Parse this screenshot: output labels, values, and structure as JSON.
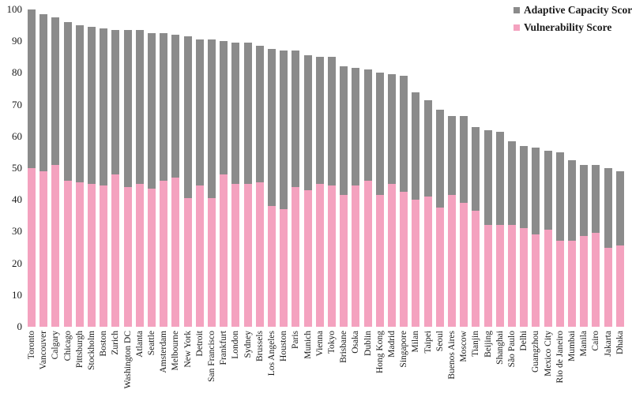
{
  "chart_data": {
    "type": "bar",
    "stacked": true,
    "title": "",
    "xlabel": "",
    "ylabel": "",
    "ylim": [
      0,
      100
    ],
    "yticks": [
      0,
      10,
      20,
      30,
      40,
      50,
      60,
      70,
      80,
      90,
      100
    ],
    "grid": false,
    "legend_position": "top-right",
    "categories": [
      "Toronto",
      "Vancouver",
      "Calgary",
      "Chicago",
      "Pittsburgh",
      "Stockholm",
      "Boston",
      "Zurich",
      "Washington DC",
      "Atlanta",
      "Seattle",
      "Amsterdam",
      "Melbourne",
      "New York",
      "Detroit",
      "San Francisco",
      "Frankfurt",
      "London",
      "Sydney",
      "Brussels",
      "Los Angeles",
      "Houston",
      "Paris",
      "Munich",
      "Vienna",
      "Tokyo",
      "Brisbane",
      "Osaka",
      "Dublin",
      "Hong Kong",
      "Madrid",
      "Singapore",
      "Milan",
      "Taipei",
      "Seoul",
      "Buenos Aires",
      "Moscow",
      "Tianjin",
      "Beijing",
      "Shanghai",
      "São Paulo",
      "Delhi",
      "Guangzhou",
      "Mexico City",
      "Rio de Janeiro",
      "Mumbai",
      "Manila",
      "Cairo",
      "Jakarta",
      "Dhaka"
    ],
    "series": [
      {
        "name": "Adaptive Capacity Score",
        "color": "#8B8B8B",
        "position": "top",
        "values": [
          50,
          49.5,
          46.5,
          50,
          49.5,
          49.5,
          49.5,
          45.5,
          49.5,
          48.5,
          49,
          46.5,
          45,
          51,
          46,
          50,
          42,
          44.5,
          44.5,
          43,
          49.5,
          50,
          43,
          42.5,
          40,
          40.5,
          40.5,
          37,
          35,
          38.5,
          34.5,
          36.5,
          34,
          30.5,
          31,
          25,
          27.5,
          26.5,
          30,
          29.5,
          26.5,
          26,
          27.5,
          25,
          28,
          25.5,
          22.5,
          21.5,
          25,
          23.5
        ]
      },
      {
        "name": "Vulnerability Score",
        "color": "#F4A2BF",
        "position": "bottom",
        "values": [
          50,
          49,
          51,
          46,
          45.5,
          45,
          44.5,
          48,
          44,
          45,
          43.5,
          46,
          47,
          40.5,
          44.5,
          40.5,
          48,
          45,
          45,
          45.5,
          38,
          37,
          44,
          43,
          45,
          44.5,
          41.5,
          44.5,
          46,
          41.5,
          45,
          42.5,
          40,
          41,
          37.5,
          41.5,
          39,
          36.5,
          32,
          32,
          32,
          31,
          29,
          30.5,
          27,
          27,
          28.5,
          29.5,
          25,
          25.5
        ]
      }
    ],
    "totals": [
      100,
      98.5,
      97.5,
      96,
      95,
      94.5,
      94,
      93.5,
      93.5,
      93.5,
      92.5,
      92.5,
      92,
      91.5,
      90.5,
      90.5,
      90,
      89.5,
      89.5,
      88.5,
      87.5,
      87,
      87,
      85.5,
      85,
      85,
      82,
      81.5,
      81,
      80,
      79.5,
      79,
      74,
      71.5,
      68.5,
      66.5,
      66.5,
      63,
      62,
      61.5,
      58.5,
      57,
      56.5,
      55.5,
      55,
      52.5,
      51,
      51,
      50,
      49
    ]
  }
}
